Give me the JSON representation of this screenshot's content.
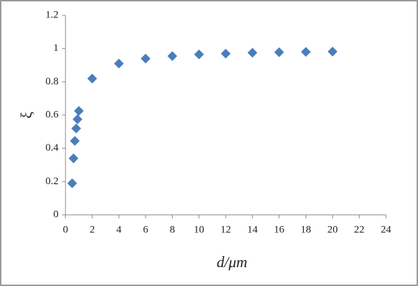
{
  "chart_data": {
    "type": "scatter",
    "x_label": "d/μm",
    "y_label": "ξ",
    "series": [
      {
        "color": "#4a7ebb",
        "x": [
          0.5,
          0.6,
          0.7,
          0.8,
          0.9,
          1.0,
          2,
          4,
          6,
          8,
          10,
          12,
          14,
          16,
          18,
          20
        ],
        "values": [
          0.19,
          0.34,
          0.445,
          0.52,
          0.575,
          0.625,
          0.82,
          0.91,
          0.94,
          0.955,
          0.965,
          0.97,
          0.975,
          0.978,
          0.98,
          0.982
        ]
      }
    ],
    "xlim": [
      0,
      24
    ],
    "xticks": [
      0,
      2,
      4,
      6,
      8,
      10,
      12,
      14,
      16,
      18,
      20,
      22,
      24
    ],
    "ylim": [
      0,
      1.2
    ],
    "yticks": [
      0,
      0.2,
      0.4,
      0.6,
      0.8,
      1,
      1.2
    ]
  }
}
